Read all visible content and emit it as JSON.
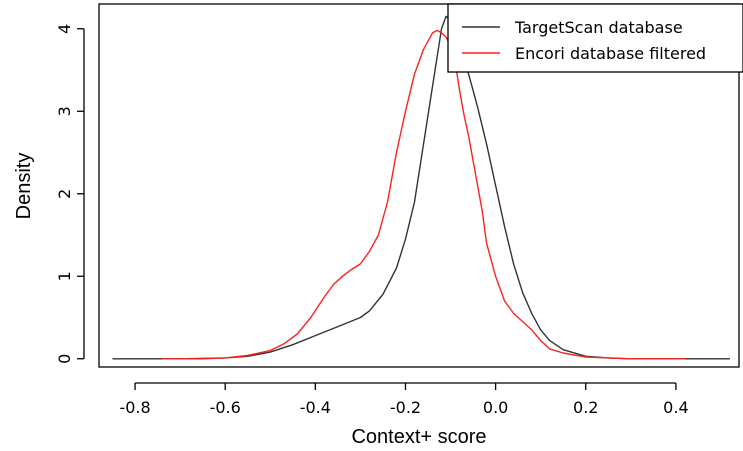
{
  "chart_data": {
    "type": "line",
    "title": "",
    "xlabel": "Context+ score",
    "ylabel": "Density",
    "xlim": [
      -0.88,
      0.54
    ],
    "ylim": [
      -0.1,
      4.3
    ],
    "x_ticks": [
      -0.8,
      -0.6,
      -0.4,
      -0.2,
      0.0,
      0.2,
      0.4
    ],
    "x_tick_labels": [
      "-0.8",
      "-0.6",
      "-0.4",
      "-0.2",
      "0.0",
      "0.2",
      "0.4"
    ],
    "y_ticks": [
      0,
      1,
      2,
      3,
      4
    ],
    "y_tick_labels": [
      "0",
      "1",
      "2",
      "3",
      "4"
    ],
    "grid": false,
    "legend_position": "top-right",
    "series": [
      {
        "name": "TargetScan database",
        "color": "#333333",
        "x": [
          -0.85,
          -0.7,
          -0.6,
          -0.55,
          -0.5,
          -0.45,
          -0.4,
          -0.35,
          -0.3,
          -0.28,
          -0.25,
          -0.22,
          -0.2,
          -0.18,
          -0.16,
          -0.14,
          -0.12,
          -0.11,
          -0.1,
          -0.08,
          -0.06,
          -0.04,
          -0.02,
          0.0,
          0.02,
          0.04,
          0.06,
          0.08,
          0.1,
          0.12,
          0.15,
          0.2,
          0.25,
          0.3,
          0.4,
          0.52
        ],
        "y": [
          0.0,
          0.0,
          0.01,
          0.03,
          0.08,
          0.17,
          0.28,
          0.39,
          0.5,
          0.58,
          0.78,
          1.1,
          1.45,
          1.9,
          2.6,
          3.3,
          4.0,
          4.15,
          4.1,
          3.8,
          3.45,
          3.05,
          2.6,
          2.1,
          1.6,
          1.15,
          0.8,
          0.55,
          0.35,
          0.22,
          0.11,
          0.03,
          0.01,
          0.0,
          0.0,
          0.0
        ]
      },
      {
        "name": "Encori database filtered",
        "color": "#ff2020",
        "x": [
          -0.74,
          -0.65,
          -0.6,
          -0.55,
          -0.5,
          -0.47,
          -0.44,
          -0.41,
          -0.38,
          -0.36,
          -0.34,
          -0.32,
          -0.3,
          -0.28,
          -0.26,
          -0.24,
          -0.22,
          -0.2,
          -0.18,
          -0.16,
          -0.14,
          -0.13,
          -0.12,
          -0.11,
          -0.1,
          -0.09,
          -0.08,
          -0.07,
          -0.06,
          -0.05,
          -0.04,
          -0.03,
          -0.02,
          0.0,
          0.02,
          0.04,
          0.06,
          0.08,
          0.1,
          0.12,
          0.15,
          0.2,
          0.3,
          0.42
        ],
        "y": [
          0.0,
          0.0,
          0.01,
          0.04,
          0.1,
          0.18,
          0.3,
          0.5,
          0.75,
          0.9,
          1.0,
          1.08,
          1.15,
          1.3,
          1.5,
          1.9,
          2.5,
          3.0,
          3.45,
          3.75,
          3.95,
          3.98,
          3.95,
          3.9,
          3.8,
          3.6,
          3.25,
          2.95,
          2.7,
          2.4,
          2.1,
          1.8,
          1.4,
          1.0,
          0.7,
          0.55,
          0.45,
          0.35,
          0.22,
          0.12,
          0.07,
          0.02,
          0.0,
          0.0
        ]
      }
    ]
  }
}
